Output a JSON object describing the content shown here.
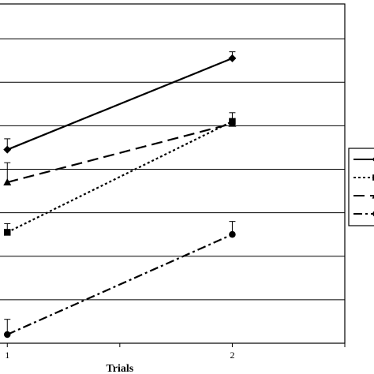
{
  "chart_data": {
    "type": "line",
    "title": "",
    "xlabel": "Trials",
    "ylabel": "",
    "x": [
      1,
      2
    ],
    "x_tick_labels": [
      "1",
      "2"
    ],
    "x_range": [
      0.95,
      2.5
    ],
    "y_range": [
      0,
      7.8
    ],
    "y_gridlines": [
      1,
      2,
      3,
      4,
      5,
      6,
      7
    ],
    "grid": true,
    "legend_position": "right",
    "series": [
      {
        "marker": "diamond",
        "line_style": "solid",
        "values": [
          4.45,
          6.55
        ],
        "error": [
          0.25,
          0.15
        ]
      },
      {
        "marker": "square",
        "line_style": "dotted",
        "values": [
          2.55,
          5.1
        ],
        "error": [
          0.2,
          0.2
        ]
      },
      {
        "marker": "triangle",
        "line_style": "dashed",
        "values": [
          3.7,
          5.05
        ],
        "error": [
          0.45,
          0.1
        ]
      },
      {
        "marker": "circle",
        "line_style": "dash-dot",
        "values": [
          0.2,
          2.5
        ],
        "error": [
          0.35,
          0.3
        ]
      }
    ]
  }
}
